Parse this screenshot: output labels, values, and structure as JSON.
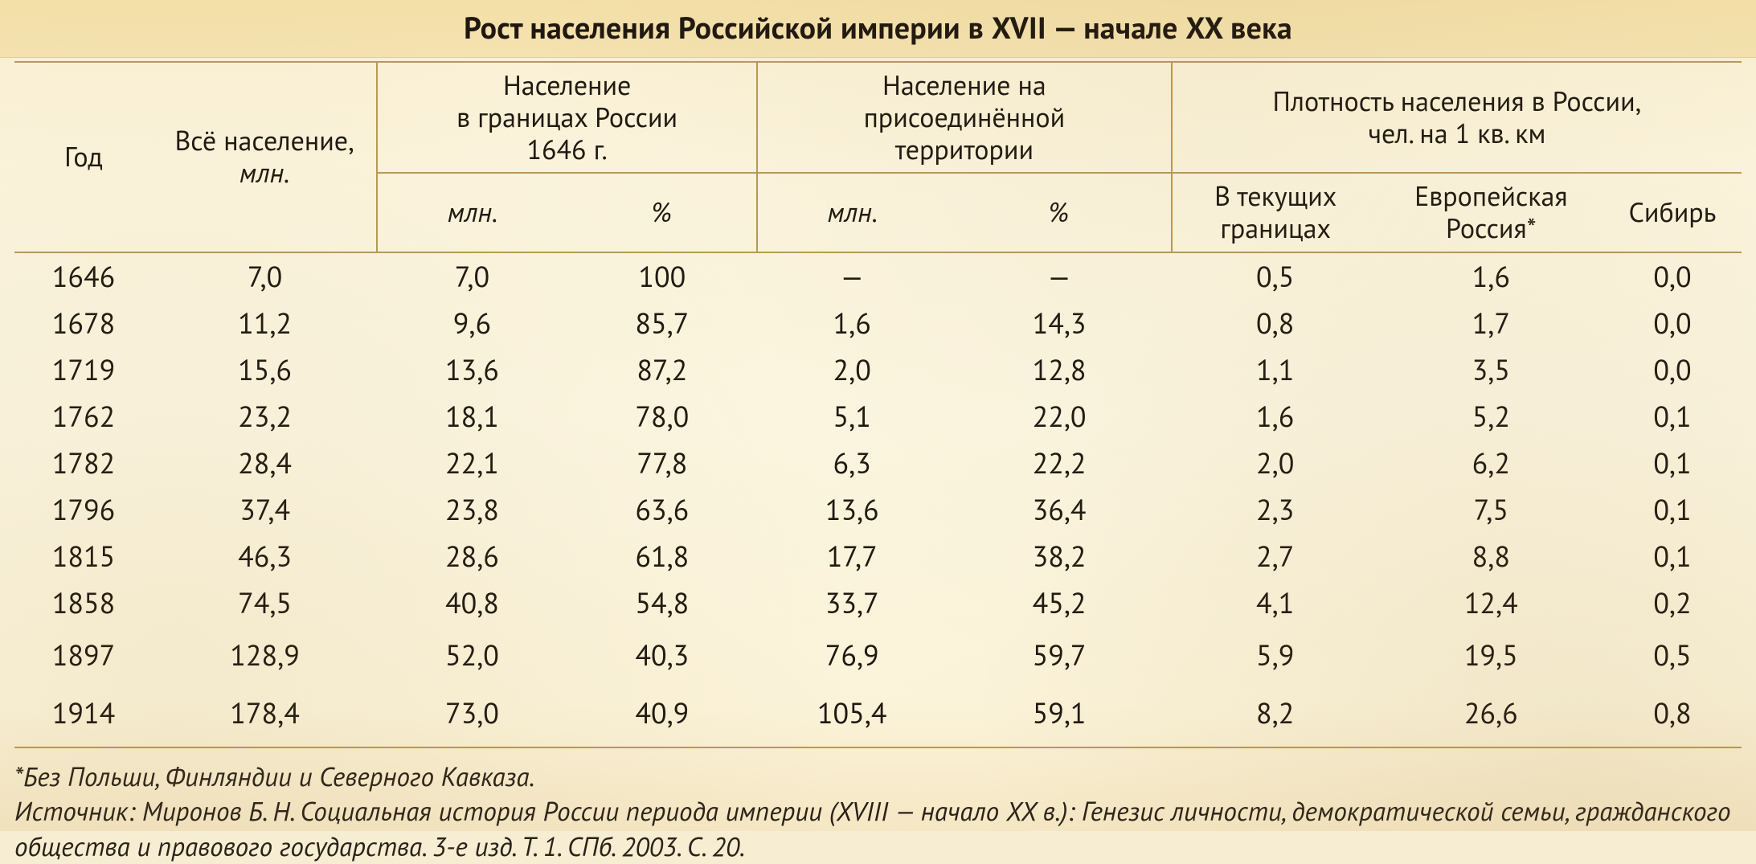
{
  "title": "Рост населения Российской империи в XVII — начале XX века",
  "table": {
    "type": "table",
    "border_color": "#b79a55",
    "text_color": "#201810",
    "background_color": "#fbf4dc",
    "title_bg": "#f3e0a9",
    "font_size_header": 34,
    "font_size_body": 36,
    "font_size_title": 38,
    "col_widths_pct": [
      8,
      13,
      11,
      11,
      11,
      13,
      12,
      13,
      8
    ],
    "headers_row1": {
      "year": "Год",
      "total": "Всё население,",
      "total_unit": "млн.",
      "in1646": "Население\nв границах России\n1646 г.",
      "annexed": "Население на\nприсоединённой\nтерритории",
      "density": "Плотность населения в России,\nчел. на 1 кв. км"
    },
    "headers_row2": {
      "mln1": "млн.",
      "pct1": "%",
      "mln2": "млн.",
      "pct2": "%",
      "cur": "В текущих\nграницах",
      "eur": "Европейская\nРоссия*",
      "sib": "Сибирь"
    },
    "rows": [
      {
        "year": "1646",
        "total": "7,0",
        "mln1": "7,0",
        "pct1": "100",
        "mln2": "—",
        "pct2": "—",
        "cur": "0,5",
        "eur": "1,6",
        "sib": "0,0"
      },
      {
        "year": "1678",
        "total": "11,2",
        "mln1": "9,6",
        "pct1": "85,7",
        "mln2": "1,6",
        "pct2": "14,3",
        "cur": "0,8",
        "eur": "1,7",
        "sib": "0,0"
      },
      {
        "year": "1719",
        "total": "15,6",
        "mln1": "13,6",
        "pct1": "87,2",
        "mln2": "2,0",
        "pct2": "12,8",
        "cur": "1,1",
        "eur": "3,5",
        "sib": "0,0"
      },
      {
        "year": "1762",
        "total": "23,2",
        "mln1": "18,1",
        "pct1": "78,0",
        "mln2": "5,1",
        "pct2": "22,0",
        "cur": "1,6",
        "eur": "5,2",
        "sib": "0,1"
      },
      {
        "year": "1782",
        "total": "28,4",
        "mln1": "22,1",
        "pct1": "77,8",
        "mln2": "6,3",
        "pct2": "22,2",
        "cur": "2,0",
        "eur": "6,2",
        "sib": "0,1"
      },
      {
        "year": "1796",
        "total": "37,4",
        "mln1": "23,8",
        "pct1": "63,6",
        "mln2": "13,6",
        "pct2": "36,4",
        "cur": "2,3",
        "eur": "7,5",
        "sib": "0,1"
      },
      {
        "year": "1815",
        "total": "46,3",
        "mln1": "28,6",
        "pct1": "61,8",
        "mln2": "17,7",
        "pct2": "38,2",
        "cur": "2,7",
        "eur": "8,8",
        "sib": "0,1"
      },
      {
        "year": "1858",
        "total": "74,5",
        "mln1": "40,8",
        "pct1": "54,8",
        "mln2": "33,7",
        "pct2": "45,2",
        "cur": "4,1",
        "eur": "12,4",
        "sib": "0,2"
      },
      {
        "year": "1897",
        "total": "128,9",
        "mln1": "52,0",
        "pct1": "40,3",
        "mln2": "76,9",
        "pct2": "59,7",
        "cur": "5,9",
        "eur": "19,5",
        "sib": "0,5",
        "gap": true
      },
      {
        "year": "1914",
        "total": "178,4",
        "mln1": "73,0",
        "pct1": "40,9",
        "mln2": "105,4",
        "pct2": "59,1",
        "cur": "8,2",
        "eur": "26,6",
        "sib": "0,8",
        "gap": true
      }
    ]
  },
  "footnotes": {
    "note": "*Без Польши, Финляндии и Северного Кавказа.",
    "source": "Источник: Миронов Б. Н. Социальная история России периода империи (XVIII — начало XX в.): Генезис личности, демократической семьи, гражданского общества и правового государства. 3-е изд. Т. 1. СПб. 2003. С. 20."
  }
}
